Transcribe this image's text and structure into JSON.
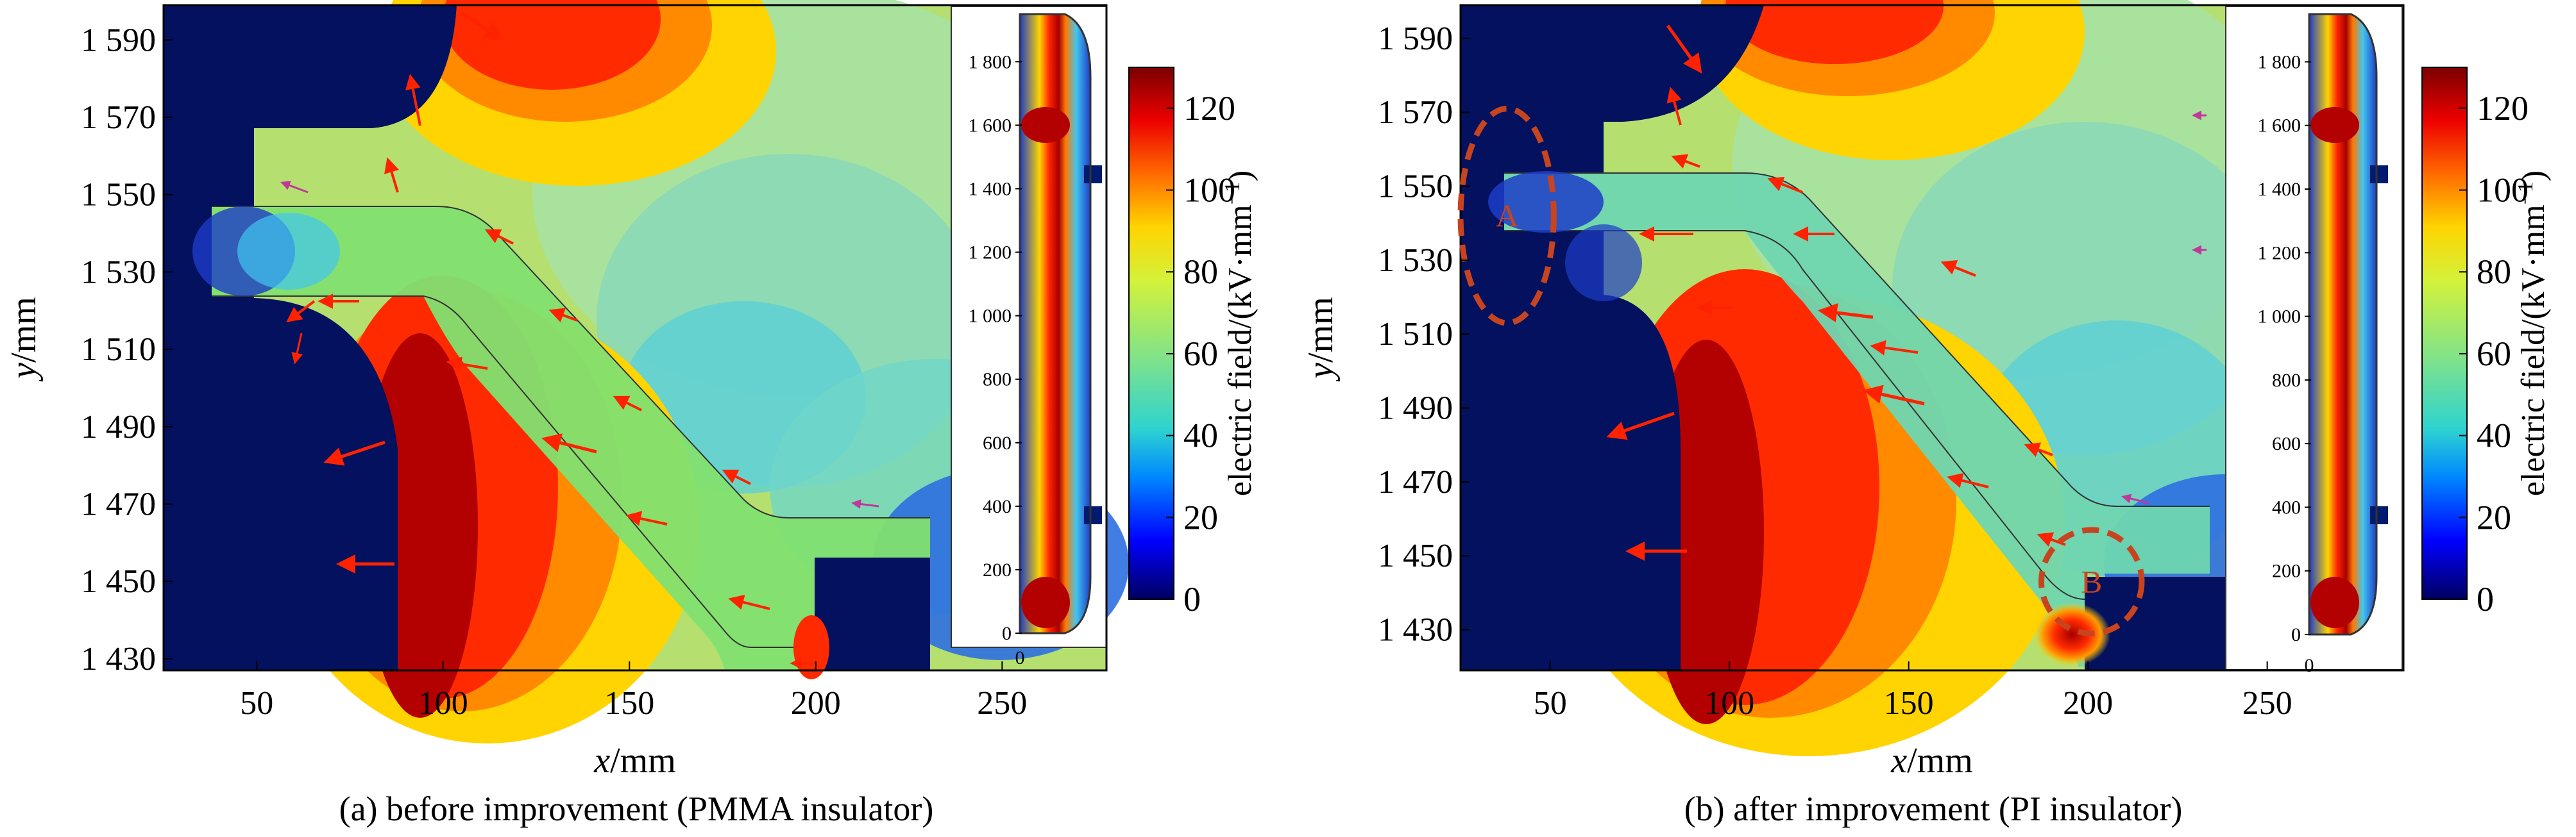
{
  "chart_data": [
    {
      "type": "heatmap",
      "id": "a",
      "caption": "(a) before improvement (PMMA insulator)",
      "xlabel_var": "x",
      "xlabel_unit": "/mm",
      "ylabel_var": "y",
      "ylabel_unit": "/mm",
      "xlim": [
        25,
        278
      ],
      "ylim": [
        1427,
        1599
      ],
      "xticks": [
        50,
        100,
        150,
        200,
        250
      ],
      "yticks": [
        1430,
        1450,
        1470,
        1490,
        1510,
        1530,
        1550,
        1570,
        1590
      ],
      "ytick_labels": [
        "1 430",
        "1 450",
        "1 470",
        "1 490",
        "1 510",
        "1 530",
        "1 550",
        "1 570",
        "1 590"
      ],
      "colorbar": {
        "label_main": "electric field/(kV·mm",
        "label_sup": "−1",
        "label_close": ")",
        "range": [
          0,
          130
        ],
        "ticks": [
          0,
          20,
          40,
          60,
          80,
          100,
          120
        ]
      },
      "inset": {
        "xticks": [
          0
        ],
        "yticks": [
          0,
          200,
          400,
          600,
          800,
          1000,
          1200,
          1400,
          1600,
          1800
        ],
        "ytick_labels": [
          "0",
          "200",
          "400",
          "600",
          "800",
          "1 000",
          "1 200",
          "1 400",
          "1 600",
          "1 800"
        ]
      },
      "markers": []
    },
    {
      "type": "heatmap",
      "id": "b",
      "caption": "(b) after improvement (PI insulator)",
      "xlabel_var": "x",
      "xlabel_unit": "/mm",
      "ylabel_var": "y",
      "ylabel_unit": "/mm",
      "xlim": [
        25,
        288
      ],
      "ylim": [
        1419,
        1599
      ],
      "xticks": [
        50,
        100,
        150,
        200,
        250
      ],
      "yticks": [
        1430,
        1450,
        1470,
        1490,
        1510,
        1530,
        1550,
        1570,
        1590
      ],
      "ytick_labels": [
        "1 430",
        "1 450",
        "1 470",
        "1 490",
        "1 510",
        "1 530",
        "1 550",
        "1 570",
        "1 590"
      ],
      "colorbar": {
        "label_main": "electric field/(kV·mm",
        "label_sup": "−1",
        "label_close": ")",
        "range": [
          0,
          130
        ],
        "ticks": [
          0,
          20,
          40,
          60,
          80,
          100,
          120
        ]
      },
      "inset": {
        "xticks": [
          0
        ],
        "yticks": [
          0,
          200,
          400,
          600,
          800,
          1000,
          1200,
          1400,
          1600,
          1800
        ],
        "ytick_labels": [
          "0",
          "200",
          "400",
          "600",
          "800",
          "1 000",
          "1 200",
          "1 400",
          "1 600",
          "1 800"
        ]
      },
      "markers": [
        {
          "label": "A",
          "x": 38,
          "y": 1542,
          "rx": 13,
          "ry": 29
        },
        {
          "label": "B",
          "x": 201,
          "y": 1443,
          "rx": 14,
          "ry": 14
        }
      ]
    }
  ],
  "colors": {
    "dark_blue": "#03115e",
    "red": "#ff2200",
    "marker_red": "#c8441e"
  }
}
